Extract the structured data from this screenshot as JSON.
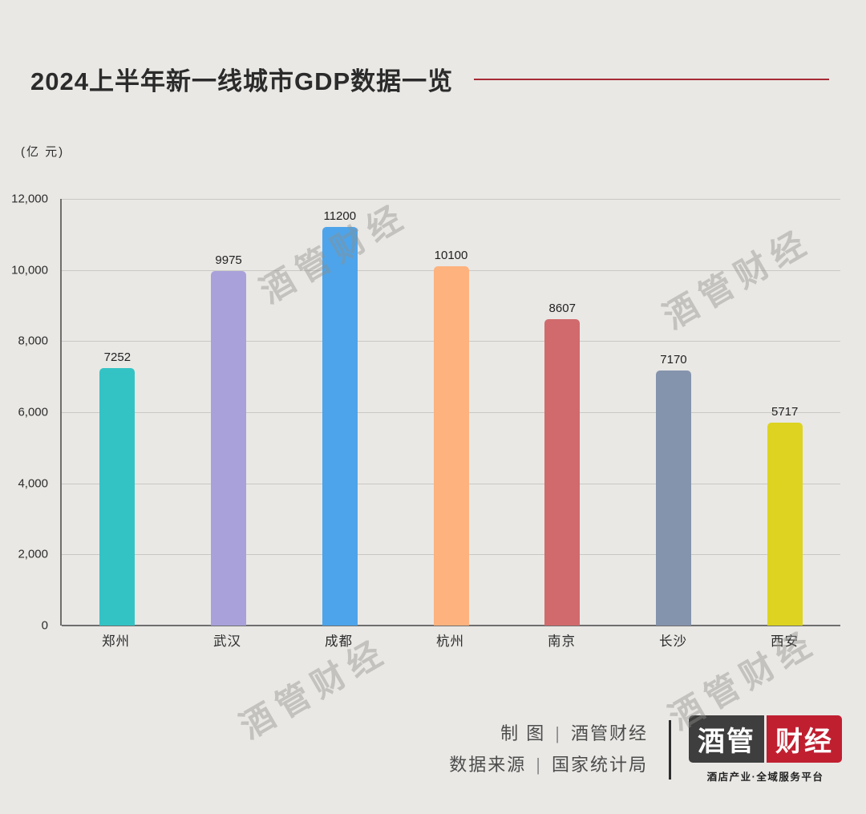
{
  "title": "2024上半年新一线城市GDP数据一览",
  "unit_label": "(亿 元)",
  "watermark": "酒管财经",
  "chart_data": {
    "type": "bar",
    "title": "2024上半年新一线城市GDP数据一览",
    "ylabel": "(亿 元)",
    "categories": [
      "郑州",
      "武汉",
      "成都",
      "杭州",
      "南京",
      "长沙",
      "西安"
    ],
    "values": [
      7252,
      9975,
      11200,
      10100,
      8607,
      7170,
      5717
    ],
    "colors": [
      "#34c3c4",
      "#a9a1da",
      "#4da4ea",
      "#feb27e",
      "#d16a6c",
      "#8594ad",
      "#ddd320"
    ],
    "ylim": [
      0,
      12000
    ],
    "yticks": [
      "12,000",
      "10,000",
      "8,000",
      "6,000",
      "4,000",
      "2,000",
      "0"
    ],
    "grid": true,
    "legend": false
  },
  "footer": {
    "credit_label": "制 图",
    "credit_value": "酒管财经",
    "source_label": "数据来源",
    "source_value": "国家统计局",
    "separator": "|",
    "logo_part1": "酒管",
    "logo_part2": "财经",
    "logo_subtitle": "酒店产业·全域服务平台"
  },
  "colors": {
    "background": "#e9e8e5",
    "accent_red_line": "#a62b35",
    "logo_red": "#c01f30",
    "logo_dark": "#3e3e3e"
  }
}
